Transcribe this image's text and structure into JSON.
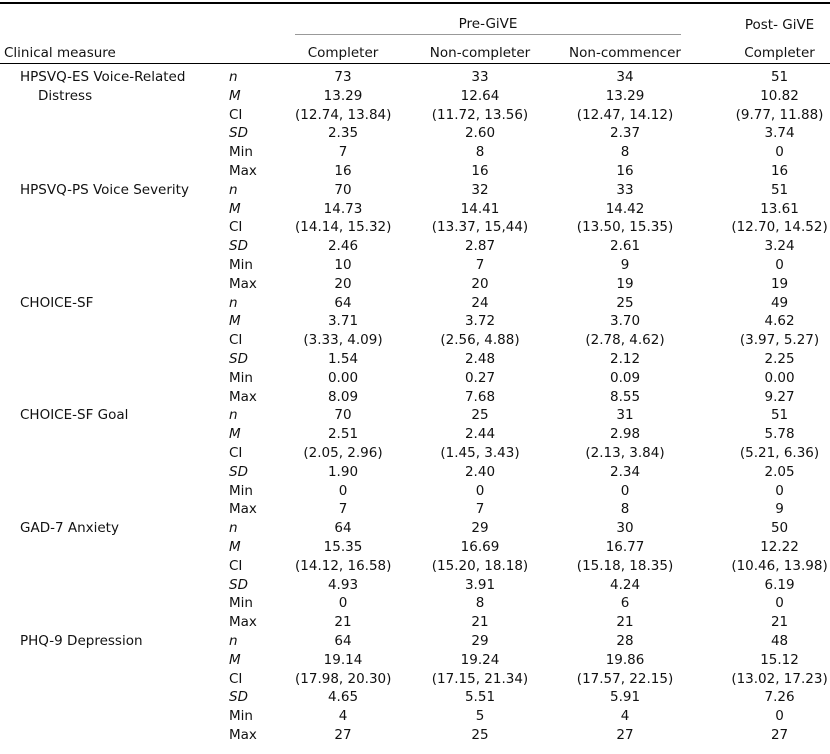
{
  "table": {
    "header": {
      "measure": "Clinical measure",
      "groups": [
        {
          "label": "Pre-GiVE"
        },
        {
          "label": "Post- GiVE"
        }
      ],
      "columns": [
        "Completer",
        "Non-completer",
        "Non-commencer",
        "Completer"
      ]
    },
    "sections": [
      {
        "measure": "HPSVQ-ES Voice-Related Distress",
        "rows": [
          [
            "n",
            "73",
            "33",
            "34",
            "51"
          ],
          [
            "M",
            "13.29",
            "12.64",
            "13.29",
            "10.82"
          ],
          [
            "CI",
            "(12.74, 13.84)",
            "(11.72, 13.56)",
            "(12.47, 14.12)",
            "(9.77, 11.88)"
          ],
          [
            "SD",
            "2.35",
            "2.60",
            "2.37",
            "3.74"
          ],
          [
            "Min",
            "7",
            "8",
            "8",
            "0"
          ],
          [
            "Max",
            "16",
            "16",
            "16",
            "16"
          ]
        ]
      },
      {
        "measure": "HPSVQ-PS Voice Severity",
        "rows": [
          [
            "n",
            "70",
            "32",
            "33",
            "51"
          ],
          [
            "M",
            "14.73",
            "14.41",
            "14.42",
            "13.61"
          ],
          [
            "CI",
            "(14.14, 15.32)",
            "(13.37, 15,44)",
            "(13.50, 15.35)",
            "(12.70, 14.52)"
          ],
          [
            "SD",
            "2.46",
            "2.87",
            "2.61",
            "3.24"
          ],
          [
            "Min",
            "10",
            "7",
            "9",
            "0"
          ],
          [
            "Max",
            "20",
            "20",
            "19",
            "19"
          ]
        ]
      },
      {
        "measure": "CHOICE-SF",
        "rows": [
          [
            "n",
            "64",
            "24",
            "25",
            "49"
          ],
          [
            "M",
            "3.71",
            "3.72",
            "3.70",
            "4.62"
          ],
          [
            "CI",
            "(3.33, 4.09)",
            "(2.56, 4.88)",
            "(2.78, 4.62)",
            "(3.97, 5.27)"
          ],
          [
            "SD",
            "1.54",
            "2.48",
            "2.12",
            "2.25"
          ],
          [
            "Min",
            "0.00",
            "0.27",
            "0.09",
            "0.00"
          ],
          [
            "Max",
            "8.09",
            "7.68",
            "8.55",
            "9.27"
          ]
        ]
      },
      {
        "measure": "CHOICE-SF Goal",
        "rows": [
          [
            "n",
            "70",
            "25",
            "31",
            "51"
          ],
          [
            "M",
            "2.51",
            "2.44",
            "2.98",
            "5.78"
          ],
          [
            "CI",
            "(2.05, 2.96)",
            "(1.45, 3.43)",
            "(2.13, 3.84)",
            "(5.21, 6.36)"
          ],
          [
            "SD",
            "1.90",
            "2.40",
            "2.34",
            "2.05"
          ],
          [
            "Min",
            "0",
            "0",
            "0",
            "0"
          ],
          [
            "Max",
            "7",
            "7",
            "8",
            "9"
          ]
        ]
      },
      {
        "measure": "GAD-7 Anxiety",
        "rows": [
          [
            "n",
            "64",
            "29",
            "30",
            "50"
          ],
          [
            "M",
            "15.35",
            "16.69",
            "16.77",
            "12.22"
          ],
          [
            "CI",
            "(14.12, 16.58)",
            "(15.20, 18.18)",
            "(15.18, 18.35)",
            "(10.46, 13.98)"
          ],
          [
            "SD",
            "4.93",
            "3.91",
            "4.24",
            "6.19"
          ],
          [
            "Min",
            "0",
            "8",
            "6",
            "0"
          ],
          [
            "Max",
            "21",
            "21",
            "21",
            "21"
          ]
        ]
      },
      {
        "measure": "PHQ-9 Depression",
        "rows": [
          [
            "n",
            "64",
            "29",
            "28",
            "48"
          ],
          [
            "M",
            "19.14",
            "19.24",
            "19.86",
            "15.12"
          ],
          [
            "CI",
            "(17.98, 20.30)",
            "(17.15, 21.34)",
            "(17.57, 22.15)",
            "(13.02, 17.23)"
          ],
          [
            "SD",
            "4.65",
            "5.51",
            "5.91",
            "7.26"
          ],
          [
            "Min",
            "4",
            "5",
            "4",
            "0"
          ],
          [
            "Max",
            "27",
            "25",
            "27",
            "27"
          ]
        ]
      }
    ]
  }
}
